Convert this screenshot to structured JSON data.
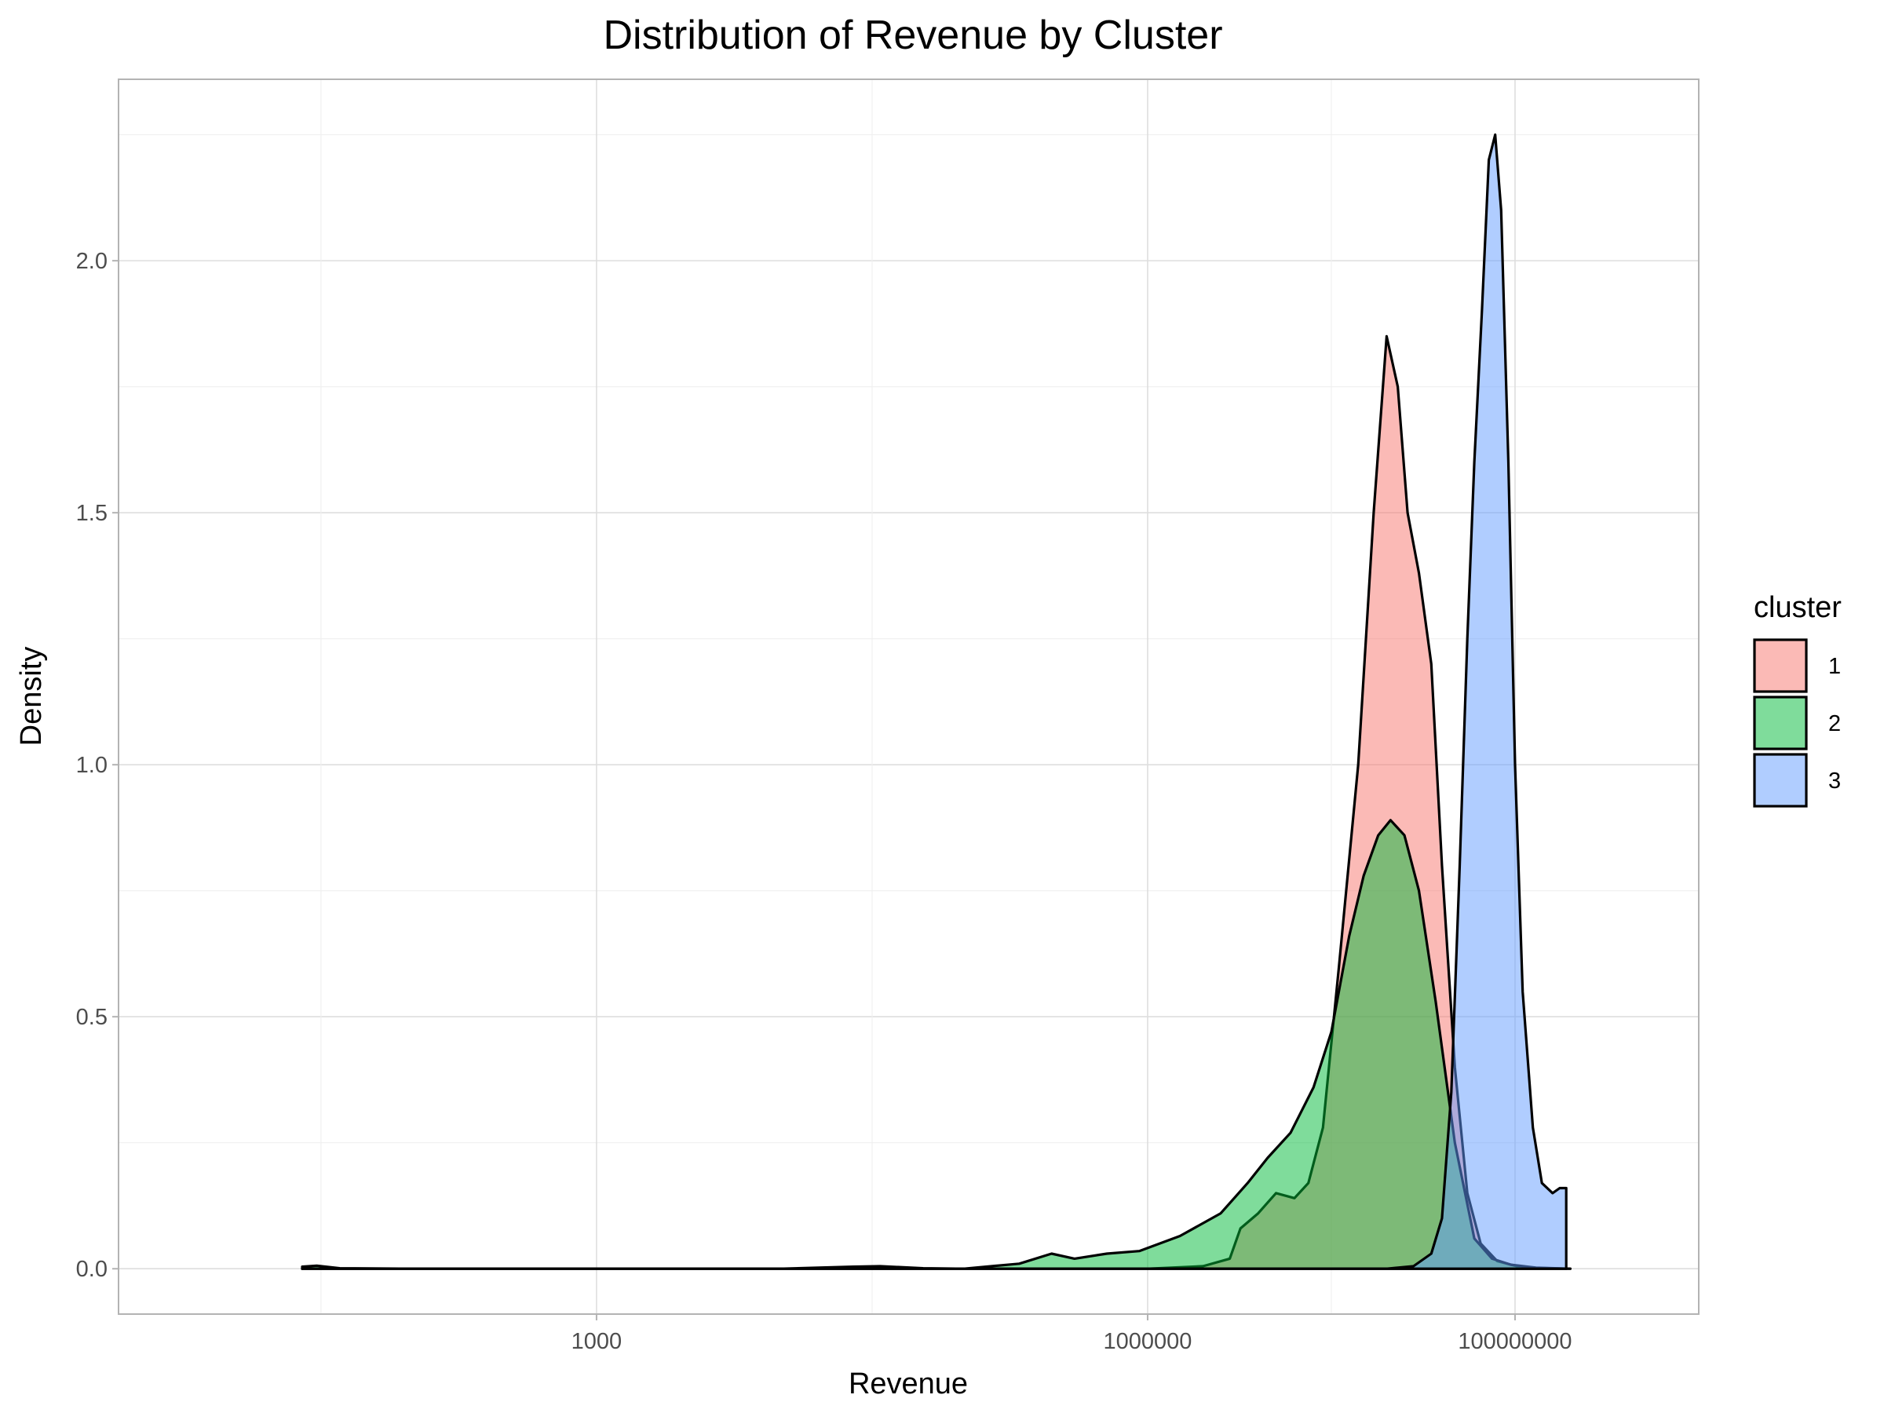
{
  "chart_data": {
    "type": "area",
    "subtype": "density",
    "title": "Distribution of Revenue by Cluster",
    "xlabel": "Revenue",
    "ylabel": "Density",
    "xscale": "log10",
    "xlim": [
      2.5,
      1000000000
    ],
    "ylim": [
      -0.09,
      2.36
    ],
    "x_ticks": [
      1000,
      1000000,
      100000000
    ],
    "x_tick_labels": [
      "1000",
      "1000000",
      "100000000"
    ],
    "y_ticks": [
      0.0,
      0.5,
      1.0,
      1.5,
      2.0
    ],
    "y_tick_labels": [
      "0.0",
      "0.5",
      "1.0",
      "1.5",
      "2.0"
    ],
    "grid": true,
    "legend": {
      "title": "cluster",
      "position": "right"
    },
    "series": [
      {
        "name": "1",
        "color": "#F8766D",
        "points": [
          [
            25,
            0
          ],
          [
            100000,
            0
          ],
          [
            1000000,
            0
          ],
          [
            2000000,
            0.005
          ],
          [
            2800000,
            0.02
          ],
          [
            3200000,
            0.08
          ],
          [
            4000000,
            0.11
          ],
          [
            5000000,
            0.15
          ],
          [
            6300000,
            0.14
          ],
          [
            7500000,
            0.17
          ],
          [
            9000000,
            0.28
          ],
          [
            11000000,
            0.6
          ],
          [
            14000000,
            1.0
          ],
          [
            17000000,
            1.5
          ],
          [
            20000000,
            1.85
          ],
          [
            23000000,
            1.75
          ],
          [
            26000000,
            1.5
          ],
          [
            30000000,
            1.38
          ],
          [
            35000000,
            1.2
          ],
          [
            40000000,
            0.8
          ],
          [
            47000000,
            0.4
          ],
          [
            55000000,
            0.15
          ],
          [
            65000000,
            0.05
          ],
          [
            80000000,
            0.015
          ],
          [
            110000000,
            0.002
          ],
          [
            200000000,
            0
          ]
        ]
      },
      {
        "name": "2",
        "color": "#00BA38",
        "points": [
          [
            25,
            0.004
          ],
          [
            30,
            0.006
          ],
          [
            40,
            0.001
          ],
          [
            100,
            0
          ],
          [
            10000,
            0
          ],
          [
            25000,
            0.004
          ],
          [
            35000,
            0.005
          ],
          [
            60000,
            0.001
          ],
          [
            100000,
            0
          ],
          [
            200000,
            0.01
          ],
          [
            300000,
            0.03
          ],
          [
            400000,
            0.02
          ],
          [
            600000,
            0.03
          ],
          [
            900000,
            0.035
          ],
          [
            1500000,
            0.065
          ],
          [
            2500000,
            0.11
          ],
          [
            3500000,
            0.17
          ],
          [
            4500000,
            0.22
          ],
          [
            6000000,
            0.27
          ],
          [
            8000000,
            0.36
          ],
          [
            10000000,
            0.47
          ],
          [
            12500000,
            0.66
          ],
          [
            15000000,
            0.78
          ],
          [
            18000000,
            0.86
          ],
          [
            21000000,
            0.89
          ],
          [
            25000000,
            0.86
          ],
          [
            30000000,
            0.75
          ],
          [
            37000000,
            0.53
          ],
          [
            47000000,
            0.25
          ],
          [
            60000000,
            0.06
          ],
          [
            75000000,
            0.02
          ],
          [
            95000000,
            0.008
          ],
          [
            130000000,
            0.002
          ],
          [
            200000000,
            0
          ]
        ]
      },
      {
        "name": "3",
        "color": "#619CFF",
        "points": [
          [
            25,
            0
          ],
          [
            1000000,
            0
          ],
          [
            20000000,
            0
          ],
          [
            28000000,
            0.005
          ],
          [
            35000000,
            0.03
          ],
          [
            40000000,
            0.1
          ],
          [
            45000000,
            0.35
          ],
          [
            50000000,
            0.8
          ],
          [
            55000000,
            1.25
          ],
          [
            60000000,
            1.6
          ],
          [
            66000000,
            1.9
          ],
          [
            72000000,
            2.2
          ],
          [
            78000000,
            2.25
          ],
          [
            84000000,
            2.1
          ],
          [
            92000000,
            1.6
          ],
          [
            100000000,
            1.0
          ],
          [
            110000000,
            0.55
          ],
          [
            125000000,
            0.28
          ],
          [
            140000000,
            0.17
          ],
          [
            160000000,
            0.15
          ],
          [
            175000000,
            0.16
          ],
          [
            190000000,
            0.16
          ]
        ]
      }
    ]
  }
}
